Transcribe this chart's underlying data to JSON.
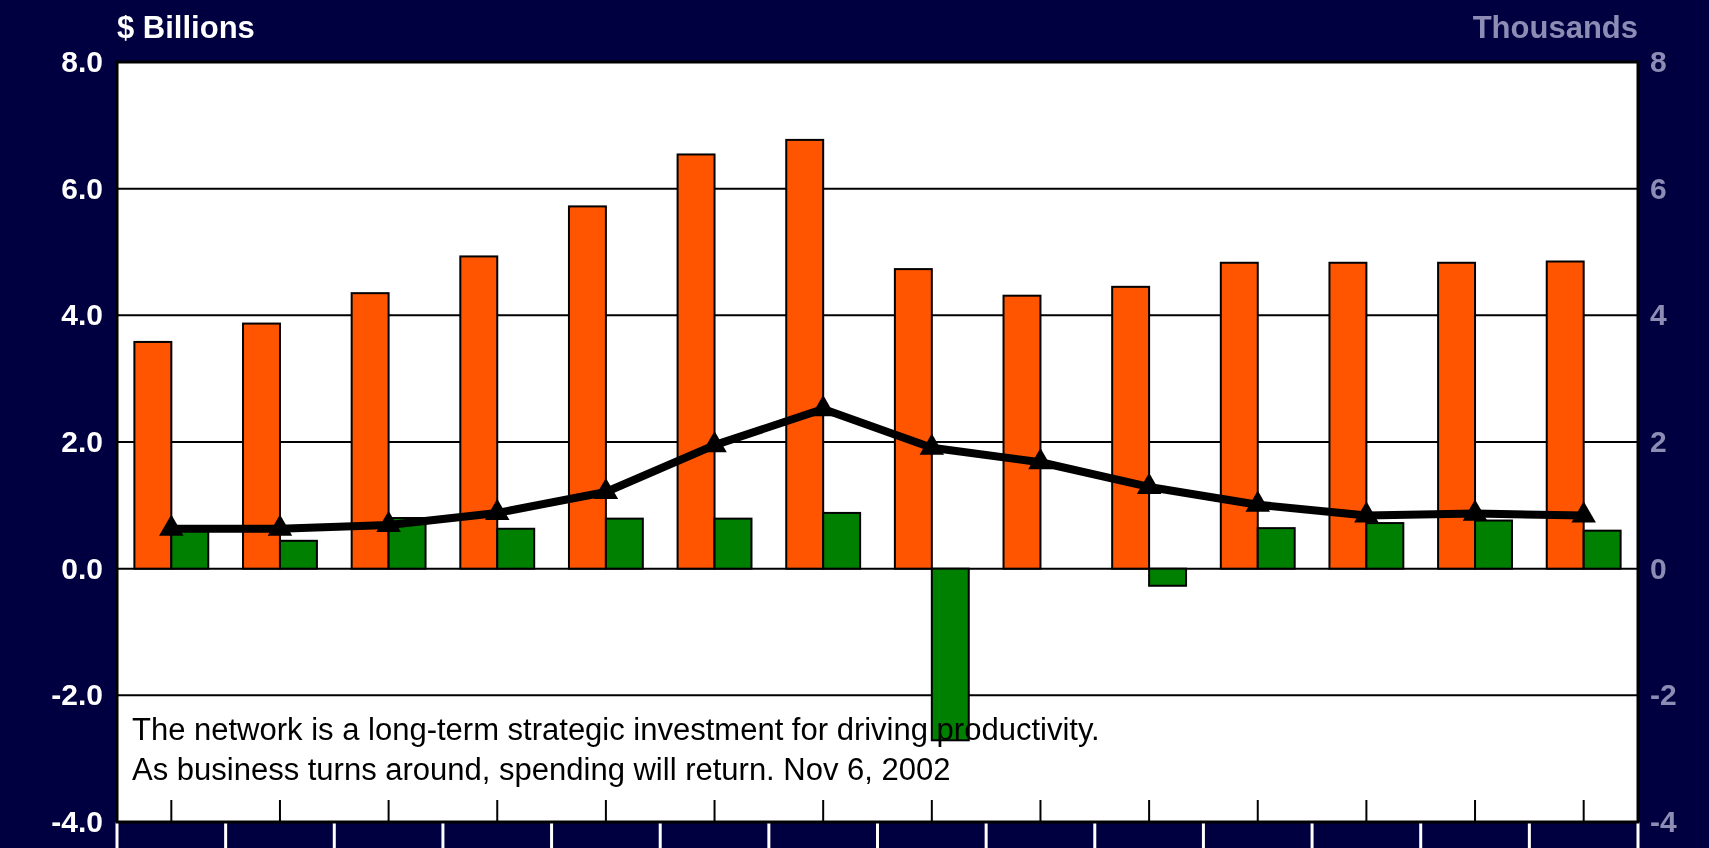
{
  "chart_data": {
    "type": "bar",
    "ylabel": "$ Billions",
    "y2label": "Thousands",
    "categories": [
      null,
      null,
      null,
      null,
      null,
      null,
      null,
      null,
      null,
      null,
      null,
      null,
      null,
      null
    ],
    "series": [
      {
        "color": "#ff5500",
        "values": [
          3.58,
          3.87,
          4.35,
          4.93,
          5.72,
          6.54,
          6.77,
          4.73,
          4.31,
          4.45,
          4.83,
          4.83,
          4.83,
          4.85
        ]
      },
      {
        "color": "#008000",
        "values": [
          0.6,
          0.44,
          0.8,
          0.63,
          0.79,
          0.79,
          0.88,
          -2.71,
          0.0,
          -0.27,
          0.64,
          0.72,
          0.76,
          0.6
        ]
      },
      {
        "type": "line",
        "axis": "y2",
        "color": "#000000",
        "marker": "triangle",
        "values": [
          0.63,
          0.63,
          0.69,
          0.88,
          1.21,
          1.95,
          2.52,
          1.91,
          1.68,
          1.29,
          1.01,
          0.84,
          0.87,
          0.84
        ]
      }
    ],
    "ylim": [
      -4,
      8
    ],
    "yticks": [
      {
        "value": -4,
        "label": "-4.0"
      },
      {
        "value": -2,
        "label": "-2.0"
      },
      {
        "value": 0,
        "label": "0.0"
      },
      {
        "value": 2,
        "label": "2.0"
      },
      {
        "value": 4,
        "label": "4.0"
      },
      {
        "value": 6,
        "label": "6.0"
      },
      {
        "value": 8,
        "label": "8.0"
      }
    ],
    "y2lim": [
      -4,
      8
    ],
    "y2ticks": [
      -4,
      -2,
      0,
      2,
      4,
      6,
      8
    ],
    "grid": "y",
    "annotations": [
      "The network is a long-term strategic investment for driving productivity.",
      "As business turns around, spending will return. Nov 6, 2002"
    ]
  }
}
